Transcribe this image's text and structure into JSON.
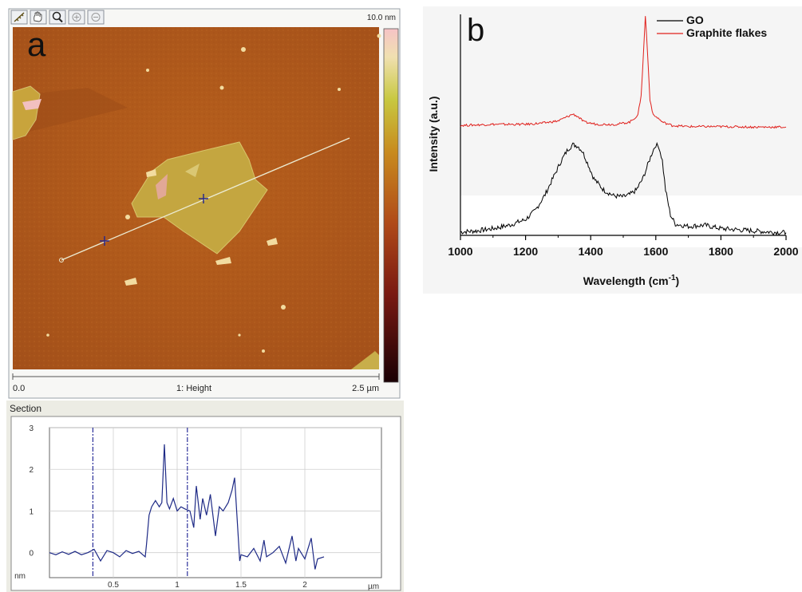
{
  "panel_a": {
    "label": "a",
    "toolbar": {
      "tools": [
        {
          "name": "ruler-tool",
          "icon": "ruler-icon"
        },
        {
          "name": "pan-tool",
          "icon": "hand-icon"
        },
        {
          "name": "zoom-tool",
          "icon": "magnifier-icon"
        },
        {
          "name": "zoom-in-tool",
          "icon": "zoom-in-icon"
        },
        {
          "name": "zoom-out-tool",
          "icon": "zoom-out-icon"
        }
      ]
    },
    "colorbar_max": "10.0 nm",
    "scale_left": "0.0",
    "scale_center": "1: Height",
    "scale_right": "2.5 µm",
    "section_title": "Section",
    "colors": {
      "substrate": "#b05a1a",
      "flake": "#c9b146",
      "line": "#e8e8d0",
      "cursor": "#2a2a8a"
    }
  },
  "chart_data": [
    {
      "type": "line",
      "title": "Section",
      "xlabel": "µm",
      "ylabel": "nm",
      "xlim": [
        0,
        2.6
      ],
      "ylim": [
        -0.6,
        3
      ],
      "xticks": [
        0.5,
        1,
        1.5,
        2
      ],
      "yticks": [
        0,
        1,
        2,
        3
      ],
      "markers_x": [
        0.34,
        1.08
      ],
      "series": [
        {
          "x": [
            0.0,
            0.05,
            0.1,
            0.15,
            0.2,
            0.25,
            0.3,
            0.35,
            0.4,
            0.45,
            0.5,
            0.55,
            0.6,
            0.65,
            0.7,
            0.75,
            0.76,
            0.78,
            0.8,
            0.83,
            0.86,
            0.88,
            0.9,
            0.92,
            0.94,
            0.97,
            1.0,
            1.03,
            1.06,
            1.1,
            1.13,
            1.15,
            1.18,
            1.2,
            1.23,
            1.26,
            1.3,
            1.33,
            1.36,
            1.4,
            1.43,
            1.45,
            1.47,
            1.49,
            1.5,
            1.55,
            1.6,
            1.65,
            1.68,
            1.7,
            1.75,
            1.8,
            1.85,
            1.9,
            1.93,
            1.95,
            2.0,
            2.05,
            2.08,
            2.1,
            2.15
          ],
          "y": [
            0.0,
            -0.05,
            0.02,
            -0.04,
            0.03,
            -0.05,
            0.0,
            0.08,
            -0.2,
            0.05,
            0.0,
            -0.1,
            0.05,
            -0.02,
            0.03,
            -0.1,
            0.2,
            0.9,
            1.1,
            1.25,
            1.1,
            1.2,
            2.6,
            1.2,
            1.05,
            1.3,
            1.0,
            1.1,
            1.05,
            1.0,
            0.6,
            1.6,
            0.8,
            1.3,
            0.9,
            1.4,
            0.4,
            1.1,
            1.0,
            1.2,
            1.5,
            1.8,
            0.8,
            -0.2,
            -0.05,
            -0.1,
            0.1,
            -0.2,
            0.3,
            -0.1,
            0.0,
            0.15,
            -0.25,
            0.4,
            -0.2,
            0.1,
            -0.15,
            0.35,
            -0.4,
            -0.15,
            -0.1
          ]
        }
      ]
    },
    {
      "type": "line",
      "title": "",
      "xlabel": "Wavelength (cm",
      "xlabel_sup": "-1",
      "xlabel_end": ")",
      "ylabel": "Intensity (a.u.)",
      "xlim": [
        1000,
        2000
      ],
      "ylim": [
        0,
        1
      ],
      "xticks": [
        1000,
        1200,
        1400,
        1600,
        1800,
        2000
      ],
      "legend_position": "top-right",
      "label": "b",
      "series": [
        {
          "name": "GO",
          "color": "#000000",
          "x": [
            1000,
            1050,
            1100,
            1150,
            1200,
            1230,
            1260,
            1290,
            1310,
            1330,
            1345,
            1360,
            1375,
            1390,
            1410,
            1440,
            1470,
            1500,
            1520,
            1540,
            1560,
            1575,
            1590,
            1600,
            1610,
            1620,
            1630,
            1645,
            1660,
            1700,
            1750,
            1800,
            1850,
            1900,
            1950,
            2000
          ],
          "y": [
            0.015,
            0.02,
            0.03,
            0.045,
            0.07,
            0.11,
            0.18,
            0.27,
            0.33,
            0.38,
            0.4,
            0.395,
            0.37,
            0.32,
            0.25,
            0.2,
            0.175,
            0.17,
            0.18,
            0.2,
            0.25,
            0.31,
            0.37,
            0.4,
            0.39,
            0.33,
            0.2,
            0.09,
            0.05,
            0.04,
            0.045,
            0.03,
            0.025,
            0.02,
            0.015,
            0.012
          ]
        },
        {
          "name": "Graphite flakes",
          "color": "#e0201c",
          "x": [
            1000,
            1100,
            1200,
            1250,
            1300,
            1330,
            1345,
            1360,
            1380,
            1420,
            1480,
            1520,
            1545,
            1555,
            1562,
            1568,
            1574,
            1582,
            1592,
            1605,
            1620,
            1650,
            1700,
            1800,
            1900,
            2000
          ],
          "y": [
            0.485,
            0.49,
            0.49,
            0.495,
            0.505,
            0.525,
            0.535,
            0.525,
            0.5,
            0.49,
            0.49,
            0.5,
            0.53,
            0.62,
            0.8,
            0.97,
            0.82,
            0.6,
            0.53,
            0.52,
            0.5,
            0.485,
            0.48,
            0.48,
            0.478,
            0.478
          ]
        }
      ]
    }
  ]
}
